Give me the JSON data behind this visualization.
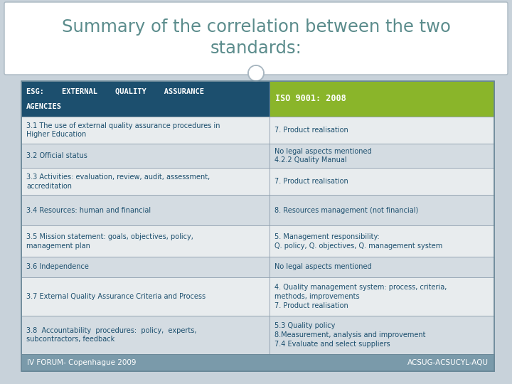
{
  "title_line1": "Summary of the correlation between the two",
  "title_line2": "standards:",
  "title_color": "#5b8c8c",
  "slide_bg": "#c8d2da",
  "title_bg": "#ffffff",
  "header_left_bg": "#1c4f6e",
  "header_right_bg": "#8ab52a",
  "footer_bg": "#7a9aaa",
  "footer_left": "IV FORUM- Copenhague 2009",
  "footer_right": "ACSUG-ACSUCYL-AQU",
  "col1_text_color": "#1c4f6e",
  "col2_text_color": "#1c4f6e",
  "row_colors": [
    "#e8ecee",
    "#d4dce2",
    "#e8ecee",
    "#d4dce2",
    "#e8ecee",
    "#d4dce2",
    "#e8ecee",
    "#d4dce2"
  ],
  "header_left_text_line1": "ESG:    EXTERNAL    QUALITY    ASSURANCE",
  "header_left_text_line2": "AGENCIES",
  "header_right_text": "ISO 9001: 2008",
  "rows": [
    {
      "left": "3.1 The use of external quality assurance procedures in\nHigher Education",
      "right": "7. Product realisation"
    },
    {
      "left": "3.2 Official status",
      "right": "No legal aspects mentioned\n4.2.2 Quality Manual"
    },
    {
      "left": "3.3 Activities: evaluation, review, audit, assessment,\naccreditation",
      "right": "7. Product realisation"
    },
    {
      "left": "3.4 Resources: human and financial",
      "right": "8. Resources management (not financial)"
    },
    {
      "left": "3.5 Mission statement: goals, objectives, policy,\nmanagement plan",
      "right": "5. Management responsibility:\nQ. policy, Q. objectives, Q. management system"
    },
    {
      "left": "3.6 Independence",
      "right": "No legal aspects mentioned"
    },
    {
      "left": "3.7 External Quality Assurance Criteria and Process",
      "right": "4. Quality management system: process, criteria,\nmethods, improvements\n7. Product realisation"
    },
    {
      "left": "3.8  Accountability  procedures:  policy,  experts,\nsubcontractors, feedback",
      "right": "5.3 Quality policy\n8.Measurement, analysis and improvement\n7.4 Evaluate and select suppliers"
    }
  ]
}
